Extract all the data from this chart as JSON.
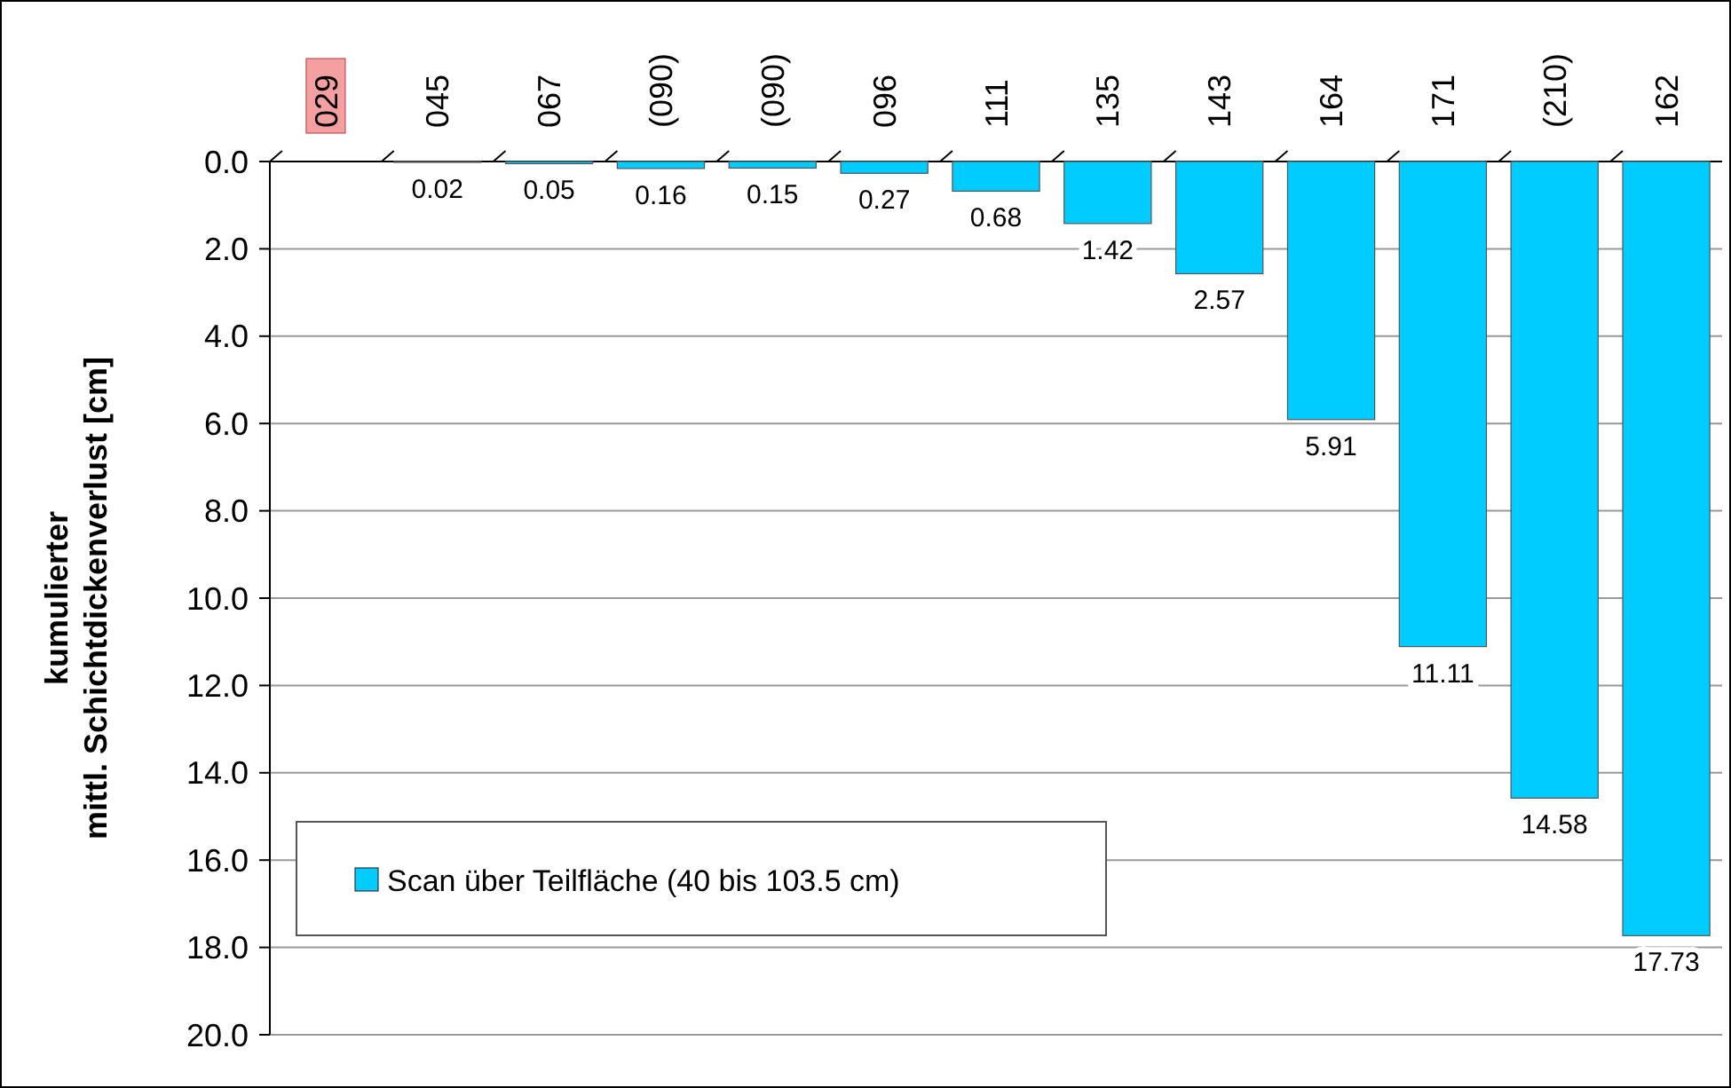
{
  "chart_data": {
    "type": "bar",
    "ylabel": "kumulierter\nmittl. Schichtdickenverlust [cm]",
    "categories": [
      "029",
      "045",
      "067",
      "(090)",
      "(090)",
      "096",
      "111",
      "135",
      "143",
      "164",
      "171",
      "(210)",
      "162"
    ],
    "series": [
      {
        "name": "Scan über Teilfläche (40 bis 103.5 cm)",
        "color": "#00ccff",
        "values": [
          null,
          0.02,
          0.05,
          0.16,
          0.15,
          0.27,
          0.68,
          1.42,
          2.57,
          5.91,
          11.11,
          14.58,
          17.73
        ]
      }
    ],
    "ylim": [
      20,
      0
    ],
    "yticks": [
      {
        "value": 0,
        "label": "0.0"
      },
      {
        "value": 2,
        "label": "2.0"
      },
      {
        "value": 4,
        "label": "4.0"
      },
      {
        "value": 6,
        "label": "6.0"
      },
      {
        "value": 8,
        "label": "8.0"
      },
      {
        "value": 10,
        "label": "10.0"
      },
      {
        "value": 12,
        "label": "12.0"
      },
      {
        "value": 14,
        "label": "14.0"
      },
      {
        "value": 16,
        "label": "16.0"
      },
      {
        "value": 18,
        "label": "18.0"
      },
      {
        "value": 20,
        "label": "20.0"
      }
    ],
    "grid": "y",
    "legend": "bottom left",
    "data_labels": true
  }
}
